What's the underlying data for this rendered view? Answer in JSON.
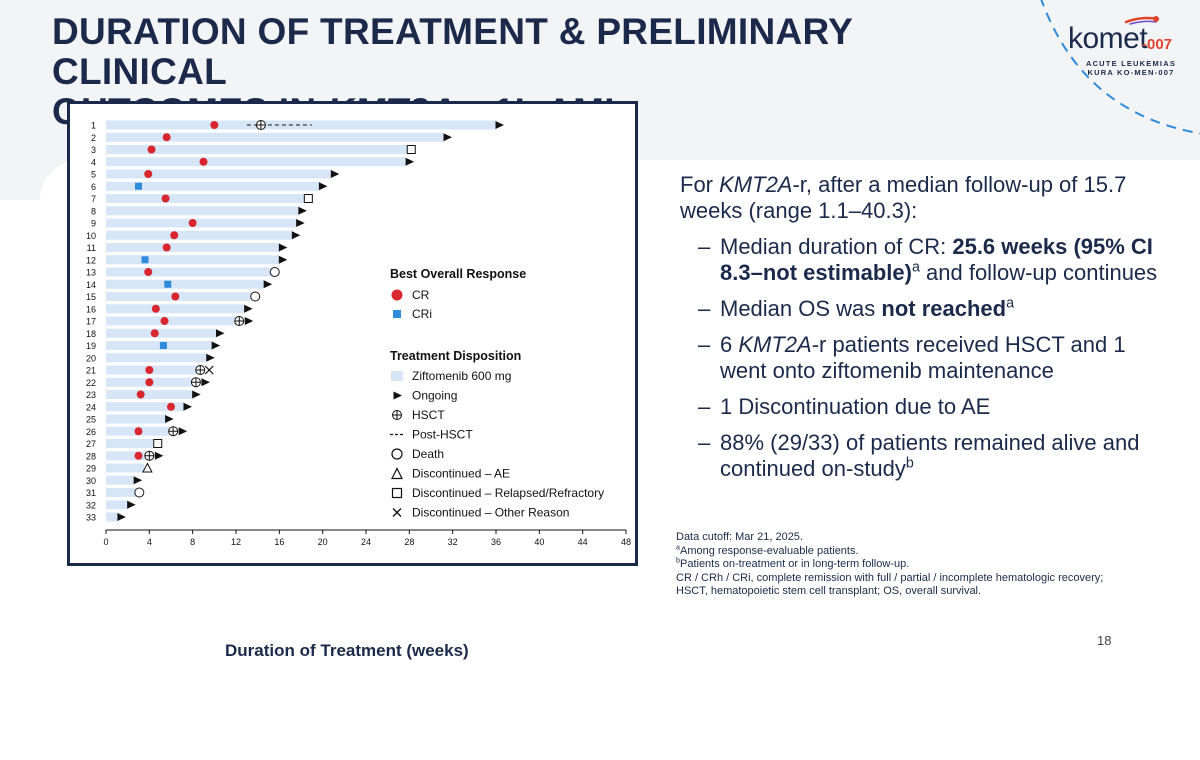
{
  "slide": {
    "title_part1": "DURATION OF TREATMENT & PRELIMINARY CLINICAL",
    "title_part2a": "OUTCOMES IN ",
    "title_part2_italic": "KMT2A",
    "title_part2b": "-r 1L AML",
    "page_number": "18",
    "colors": {
      "navy": "#1b2a4a",
      "bar": "#d6e6f7",
      "cr": "#d9262e",
      "cri": "#2e8bdc",
      "accent": "#e2452f"
    }
  },
  "logo": {
    "word": "komet",
    "suffix": "-007",
    "line1": "ACUTE LEUKEMIAS",
    "line2": "KURA KO-MEN-007"
  },
  "text": {
    "intro_a": "For ",
    "intro_italic": "KMT2A",
    "intro_b": "-r, after a median follow-up of 15.7 weeks (range 1.1–40.3):",
    "b1_a": "Median duration of CR: ",
    "b1_bold": "25.6 weeks (95% CI 8.3–not estimable)",
    "b1_sup": "a",
    "b1_b": " and follow-up continues",
    "b2_a": "Median OS was ",
    "b2_bold": "not reached",
    "b2_sup": "a",
    "b3_a": "6 ",
    "b3_italic": "KMT2A",
    "b3_b": "-r patients received HSCT and 1 went onto ziftomenib maintenance",
    "b4": "1 Discontinuation due to AE",
    "b5_a": "88% (29/33) of patients remained alive and continued on-study",
    "b5_sup": "b"
  },
  "footnotes": {
    "f1": "Data cutoff: Mar 21, 2025.",
    "f2_sup": "a",
    "f2": "Among response-evaluable patients.",
    "f3_sup": "b",
    "f3": "Patients on-treatment or in long-term follow-up.",
    "f4": "CR / CRh / CRi, complete remission with full / partial / incomplete hematologic recovery;",
    "f5": "HSCT, hematopoietic stem cell transplant; OS, overall survival."
  },
  "chart_data": {
    "type": "swimmer",
    "xlabel": "Duration of Treatment (weeks)",
    "xlim": [
      0,
      48
    ],
    "xticks": [
      0,
      4,
      8,
      12,
      16,
      20,
      24,
      28,
      32,
      36,
      40,
      44,
      48
    ],
    "legend": {
      "response_title": "Best Overall Response",
      "cr": "CR",
      "cri": "CRi",
      "disposition_title": "Treatment Disposition",
      "ziftomenib": "Ziftomenib 600 mg",
      "ongoing": "Ongoing",
      "hsct": "HSCT",
      "post_hsct": "Post-HSCT",
      "death": "Death",
      "disc_ae": "Discontinued – AE",
      "disc_rr": "Discontinued – Relapsed/Refractory",
      "disc_other": "Discontinued – Other Reason"
    },
    "patients": [
      {
        "id": "1",
        "bar": 36.0,
        "resp": "CR",
        "resp_at": 10.0,
        "hsct_at": 14.3,
        "post_hsct_end": 19.0,
        "end": "ongoing"
      },
      {
        "id": "2",
        "bar": 31.2,
        "resp": "CR",
        "resp_at": 5.6,
        "end": "ongoing"
      },
      {
        "id": "3",
        "bar": 27.9,
        "resp": "CR",
        "resp_at": 4.2,
        "end": "relapsed"
      },
      {
        "id": "4",
        "bar": 27.7,
        "resp": "CR",
        "resp_at": 9.0,
        "end": "ongoing"
      },
      {
        "id": "5",
        "bar": 20.8,
        "resp": "CR",
        "resp_at": 3.9,
        "end": "ongoing"
      },
      {
        "id": "6",
        "bar": 19.7,
        "resp": "CRi",
        "resp_at": 3.0,
        "end": "ongoing"
      },
      {
        "id": "7",
        "bar": 18.4,
        "resp": "CR",
        "resp_at": 5.5,
        "end": "relapsed"
      },
      {
        "id": "8",
        "bar": 17.8,
        "resp": "",
        "end": "ongoing"
      },
      {
        "id": "9",
        "bar": 17.6,
        "resp": "CR",
        "resp_at": 8.0,
        "end": "ongoing"
      },
      {
        "id": "10",
        "bar": 17.2,
        "resp": "CR",
        "resp_at": 6.3,
        "end": "ongoing"
      },
      {
        "id": "11",
        "bar": 16.0,
        "resp": "CR",
        "resp_at": 5.6,
        "end": "ongoing"
      },
      {
        "id": "12",
        "bar": 16.0,
        "resp": "CRi",
        "resp_at": 3.6,
        "end": "ongoing"
      },
      {
        "id": "13",
        "bar": 15.3,
        "resp": "CR",
        "resp_at": 3.9,
        "end": "death"
      },
      {
        "id": "14",
        "bar": 14.6,
        "resp": "CRi",
        "resp_at": 5.7,
        "end": "ongoing"
      },
      {
        "id": "15",
        "bar": 13.5,
        "resp": "CR",
        "resp_at": 6.4,
        "end": "death"
      },
      {
        "id": "16",
        "bar": 12.8,
        "resp": "CR",
        "resp_at": 4.6,
        "end": "ongoing"
      },
      {
        "id": "17",
        "bar": 12.5,
        "resp": "CR",
        "resp_at": 5.4,
        "hsct_at": 12.3,
        "end": "ongoing"
      },
      {
        "id": "18",
        "bar": 10.2,
        "resp": "CR",
        "resp_at": 4.5,
        "end": "ongoing"
      },
      {
        "id": "19",
        "bar": 9.8,
        "resp": "CRi",
        "resp_at": 5.3,
        "end": "ongoing"
      },
      {
        "id": "20",
        "bar": 9.3,
        "resp": "",
        "end": "ongoing"
      },
      {
        "id": "21",
        "bar": 8.8,
        "resp": "CR",
        "resp_at": 4.0,
        "hsct_at": 8.7,
        "end": "other"
      },
      {
        "id": "22",
        "bar": 8.6,
        "resp": "CR",
        "resp_at": 4.0,
        "hsct_at": 8.3,
        "end": "ongoing"
      },
      {
        "id": "23",
        "bar": 8.0,
        "resp": "CR",
        "resp_at": 3.2,
        "end": "ongoing"
      },
      {
        "id": "24",
        "bar": 7.2,
        "resp": "CR",
        "resp_at": 6.0,
        "end": "ongoing"
      },
      {
        "id": "25",
        "bar": 5.5,
        "resp": "",
        "end": "ongoing"
      },
      {
        "id": "26",
        "bar": 6.5,
        "resp": "CR",
        "resp_at": 3.0,
        "hsct_at": 6.2,
        "end": "ongoing"
      },
      {
        "id": "27",
        "bar": 4.5,
        "resp": "",
        "end": "relapsed"
      },
      {
        "id": "28",
        "bar": 4.4,
        "resp": "CR",
        "resp_at": 3.0,
        "hsct_at": 4.0,
        "end": "ongoing"
      },
      {
        "id": "29",
        "bar": 3.5,
        "resp": "",
        "end": "ae"
      },
      {
        "id": "30",
        "bar": 2.6,
        "resp": "",
        "end": "ongoing"
      },
      {
        "id": "31",
        "bar": 2.8,
        "resp": "",
        "end": "death"
      },
      {
        "id": "32",
        "bar": 2.0,
        "resp": "",
        "end": "ongoing"
      },
      {
        "id": "33",
        "bar": 1.1,
        "resp": "",
        "end": "ongoing"
      }
    ]
  }
}
